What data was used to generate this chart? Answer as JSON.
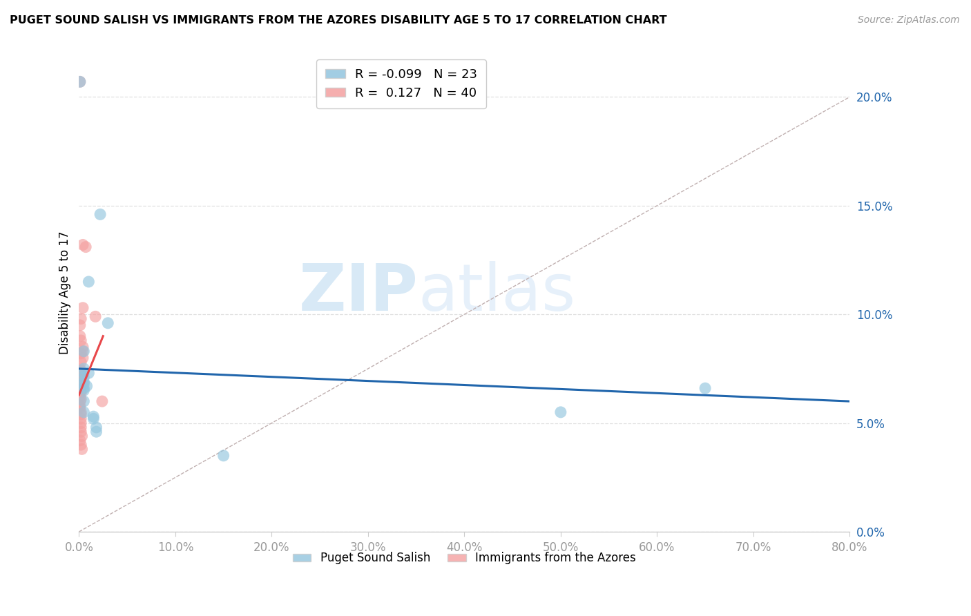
{
  "title": "PUGET SOUND SALISH VS IMMIGRANTS FROM THE AZORES DISABILITY AGE 5 TO 17 CORRELATION CHART",
  "source": "Source: ZipAtlas.com",
  "ylabel": "Disability Age 5 to 17",
  "xlim": [
    0.0,
    0.8
  ],
  "ylim": [
    0.0,
    0.22
  ],
  "xticks": [
    0.0,
    0.1,
    0.2,
    0.3,
    0.4,
    0.5,
    0.6,
    0.7,
    0.8
  ],
  "yticks": [
    0.0,
    0.05,
    0.1,
    0.15,
    0.2
  ],
  "blue_color": "#92c5de",
  "pink_color": "#f4a0a0",
  "blue_line_color": "#2166ac",
  "pink_line_color": "#e8474a",
  "diag_color": "#c0b0b0",
  "grid_color": "#e0e0e0",
  "legend_blue_R": "-0.099",
  "legend_blue_N": "23",
  "legend_pink_R": "0.127",
  "legend_pink_N": "40",
  "watermark_zip": "ZIP",
  "watermark_atlas": "atlas",
  "blue_line_x": [
    0.0,
    0.8
  ],
  "blue_line_y": [
    0.075,
    0.06
  ],
  "pink_line_x": [
    0.0,
    0.025
  ],
  "pink_line_y": [
    0.063,
    0.09
  ],
  "blue_points_x": [
    0.001,
    0.022,
    0.01,
    0.005,
    0.005,
    0.03,
    0.005,
    0.01,
    0.005,
    0.005,
    0.005,
    0.008,
    0.005,
    0.005,
    0.005,
    0.005,
    0.015,
    0.015,
    0.018,
    0.018,
    0.5,
    0.65,
    0.15
  ],
  "blue_points_y": [
    0.207,
    0.146,
    0.115,
    0.083,
    0.075,
    0.096,
    0.073,
    0.073,
    0.071,
    0.069,
    0.068,
    0.067,
    0.066,
    0.065,
    0.06,
    0.055,
    0.053,
    0.052,
    0.048,
    0.046,
    0.055,
    0.066,
    0.035
  ],
  "pink_points_x": [
    0.001,
    0.004,
    0.007,
    0.004,
    0.017,
    0.002,
    0.001,
    0.001,
    0.002,
    0.004,
    0.004,
    0.002,
    0.004,
    0.002,
    0.001,
    0.002,
    0.001,
    0.002,
    0.002,
    0.001,
    0.001,
    0.002,
    0.002,
    0.002,
    0.001,
    0.002,
    0.001,
    0.001,
    0.001,
    0.002,
    0.002,
    0.002,
    0.002,
    0.002,
    0.002,
    0.003,
    0.001,
    0.002,
    0.003,
    0.024
  ],
  "pink_points_y": [
    0.207,
    0.132,
    0.131,
    0.103,
    0.099,
    0.098,
    0.095,
    0.09,
    0.088,
    0.085,
    0.083,
    0.082,
    0.08,
    0.078,
    0.075,
    0.074,
    0.073,
    0.072,
    0.071,
    0.07,
    0.068,
    0.067,
    0.065,
    0.064,
    0.062,
    0.061,
    0.06,
    0.058,
    0.057,
    0.055,
    0.054,
    0.052,
    0.05,
    0.048,
    0.046,
    0.044,
    0.042,
    0.04,
    0.038,
    0.06
  ]
}
